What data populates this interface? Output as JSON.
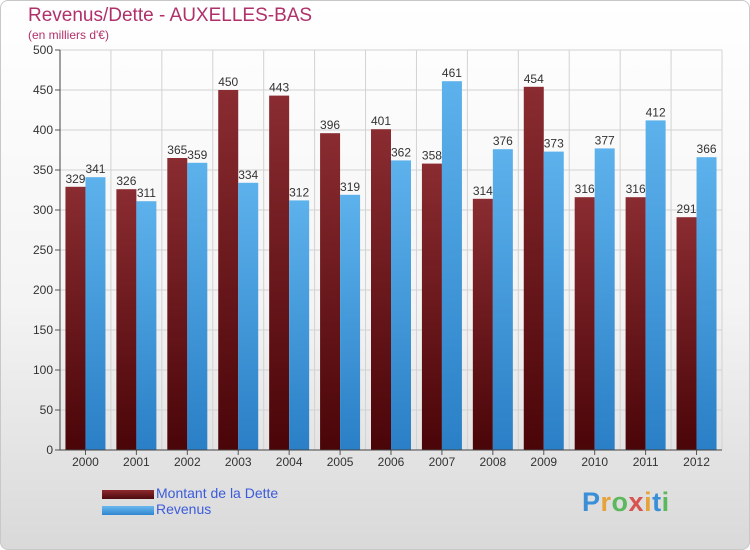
{
  "header": {
    "title": "Revenus/Dette - AUXELLES-BAS",
    "subtitle": "(en milliers d'€)"
  },
  "colors": {
    "dette": "#7a1e22",
    "revenus": "#4fa3e0",
    "title": "#b0306a",
    "legend_text": "#3b5bdb"
  },
  "chart_data": {
    "type": "bar",
    "categories": [
      "2000",
      "2001",
      "2002",
      "2003",
      "2004",
      "2005",
      "2006",
      "2007",
      "2008",
      "2009",
      "2010",
      "2011",
      "2012"
    ],
    "series": [
      {
        "name": "Montant de la Dette",
        "values": [
          329,
          326,
          365,
          450,
          443,
          396,
          401,
          358,
          314,
          454,
          316,
          316,
          291
        ]
      },
      {
        "name": "Revenus",
        "values": [
          341,
          311,
          359,
          334,
          312,
          319,
          362,
          461,
          376,
          373,
          377,
          412,
          366
        ]
      }
    ],
    "ylim": [
      0,
      500
    ],
    "yticks": [
      0,
      50,
      100,
      150,
      200,
      250,
      300,
      350,
      400,
      450,
      500
    ],
    "grid": true,
    "legend": "bottom-left"
  },
  "logo": {
    "text": "Proxiti",
    "letters": [
      "P",
      "r",
      "o",
      "x",
      "i",
      "t",
      "i"
    ]
  }
}
